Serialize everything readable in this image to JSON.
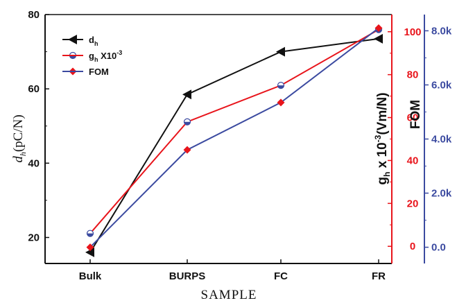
{
  "chart_data": {
    "type": "line",
    "categories": [
      "Bulk",
      "BURPS",
      "FC",
      "FR"
    ],
    "xlabel": "SAMPLE",
    "axes": {
      "left": {
        "label_main": "d",
        "label_sub": "h",
        "label_unit": "(pC/N)",
        "ylim": [
          13,
          80
        ],
        "ticks": [
          "20",
          "40",
          "60",
          "80"
        ],
        "color": "#111111"
      },
      "right1": {
        "label_main": "g",
        "label_sub": "h",
        "label_mid": " x 10",
        "label_sup": "-3",
        "label_unit": "(Vm/N)",
        "ylim": [
          -8,
          108
        ],
        "ticks": [
          "0",
          "20",
          "40",
          "60",
          "80",
          "100"
        ],
        "color": "#e8141b"
      },
      "right2": {
        "label": "FOM",
        "ylim": [
          -600,
          8600
        ],
        "ticks": [
          "0.0",
          "2.0k",
          "4.0k",
          "6.0k",
          "8.0k"
        ],
        "color": "#3b4aa0"
      }
    },
    "series": [
      {
        "legend_main": "d",
        "legend_sub": "h",
        "legend_rest": "",
        "legend_sup": "",
        "axis": "left",
        "color": "#111111",
        "marker": "triangle-left",
        "values": [
          16,
          58.5,
          70,
          73.5
        ]
      },
      {
        "legend_main": "g",
        "legend_sub": "h",
        "legend_rest": " X10",
        "legend_sup": "-3",
        "axis": "right1",
        "color": "#e8141b",
        "marker": "circle-half",
        "values": [
          6,
          58,
          75,
          101
        ]
      },
      {
        "legend_main": "FOM",
        "legend_sub": "",
        "legend_rest": "",
        "legend_sup": "",
        "axis": "right2",
        "color": "#3b4aa0",
        "line_color": "#3b4aa0",
        "marker_color": "#e8141b",
        "marker": "diamond",
        "values": [
          0,
          3600,
          5350,
          8100
        ]
      }
    ],
    "grid": false,
    "legend_position": "top-left"
  }
}
